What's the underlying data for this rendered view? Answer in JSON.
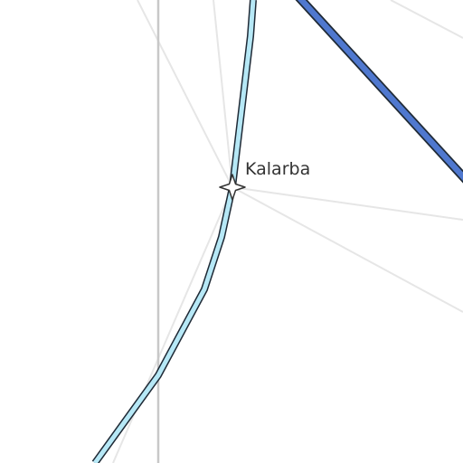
{
  "map": {
    "place": {
      "name": "Kalarba",
      "icon": "star-4-point-icon"
    },
    "colors": {
      "background": "#ffffff",
      "minor_road": "#e6e6e6",
      "boundary": "#c8c8c8",
      "local_route": "#b6e8f6",
      "major_route": "#4f78cf",
      "outline": "#1f2a36",
      "label": "#333333"
    }
  }
}
